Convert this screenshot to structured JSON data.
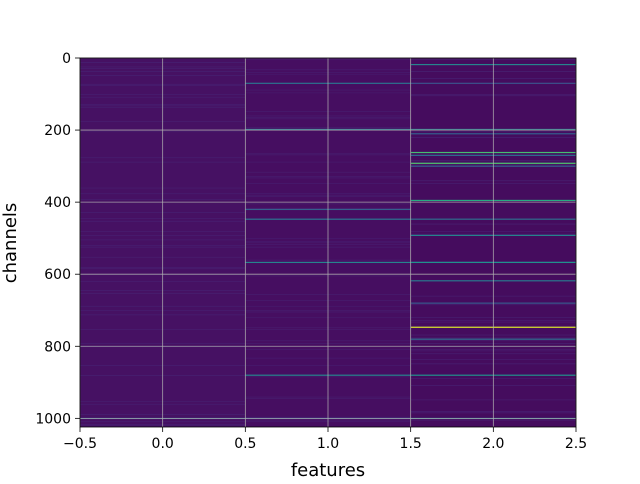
{
  "chart_data": {
    "type": "heatmap",
    "title": "",
    "xlabel": "features",
    "ylabel": "channels",
    "x": [
      0,
      1,
      2
    ],
    "xlim": [
      -0.5,
      2.5
    ],
    "ylim": [
      1024,
      0
    ],
    "y_inverted": true,
    "n_rows": 1024,
    "colormap": "viridis",
    "grid": true,
    "x_ticks": [
      -0.5,
      0.0,
      0.5,
      1.0,
      1.5,
      2.0,
      2.5
    ],
    "x_tick_labels": [
      "−0.5",
      "0.0",
      "0.5",
      "1.0",
      "1.5",
      "2.0",
      "2.5"
    ],
    "y_ticks": [
      0,
      200,
      400,
      600,
      800,
      1000
    ],
    "y_tick_labels": [
      "0",
      "200",
      "400",
      "600",
      "800",
      "1000"
    ],
    "background_level": [
      0.06,
      0.05,
      0.04
    ],
    "highlights": [
      {
        "row": 18,
        "col": 2,
        "level": 0.45
      },
      {
        "row": 70,
        "col": 1,
        "level": 0.38
      },
      {
        "row": 70,
        "col": 2,
        "level": 0.25
      },
      {
        "row": 198,
        "col": 1,
        "level": 0.4
      },
      {
        "row": 198,
        "col": 2,
        "level": 0.42
      },
      {
        "row": 210,
        "col": 2,
        "level": 0.3
      },
      {
        "row": 262,
        "col": 2,
        "level": 0.7
      },
      {
        "row": 270,
        "col": 2,
        "level": 0.35
      },
      {
        "row": 292,
        "col": 2,
        "level": 0.72
      },
      {
        "row": 300,
        "col": 2,
        "level": 0.3
      },
      {
        "row": 395,
        "col": 2,
        "level": 0.62
      },
      {
        "row": 420,
        "col": 1,
        "level": 0.3
      },
      {
        "row": 447,
        "col": 1,
        "level": 0.38
      },
      {
        "row": 447,
        "col": 2,
        "level": 0.35
      },
      {
        "row": 492,
        "col": 2,
        "level": 0.45
      },
      {
        "row": 567,
        "col": 1,
        "level": 0.45
      },
      {
        "row": 567,
        "col": 2,
        "level": 0.5
      },
      {
        "row": 618,
        "col": 2,
        "level": 0.4
      },
      {
        "row": 680,
        "col": 2,
        "level": 0.28
      },
      {
        "row": 747,
        "col": 2,
        "level": 0.95
      },
      {
        "row": 780,
        "col": 2,
        "level": 0.35
      },
      {
        "row": 880,
        "col": 1,
        "level": 0.45
      },
      {
        "row": 880,
        "col": 2,
        "level": 0.5
      },
      {
        "row": 1000,
        "col": 0,
        "level": 0.3
      },
      {
        "row": 1000,
        "col": 1,
        "level": 0.25
      },
      {
        "row": 1000,
        "col": 2,
        "level": 0.4
      }
    ]
  }
}
